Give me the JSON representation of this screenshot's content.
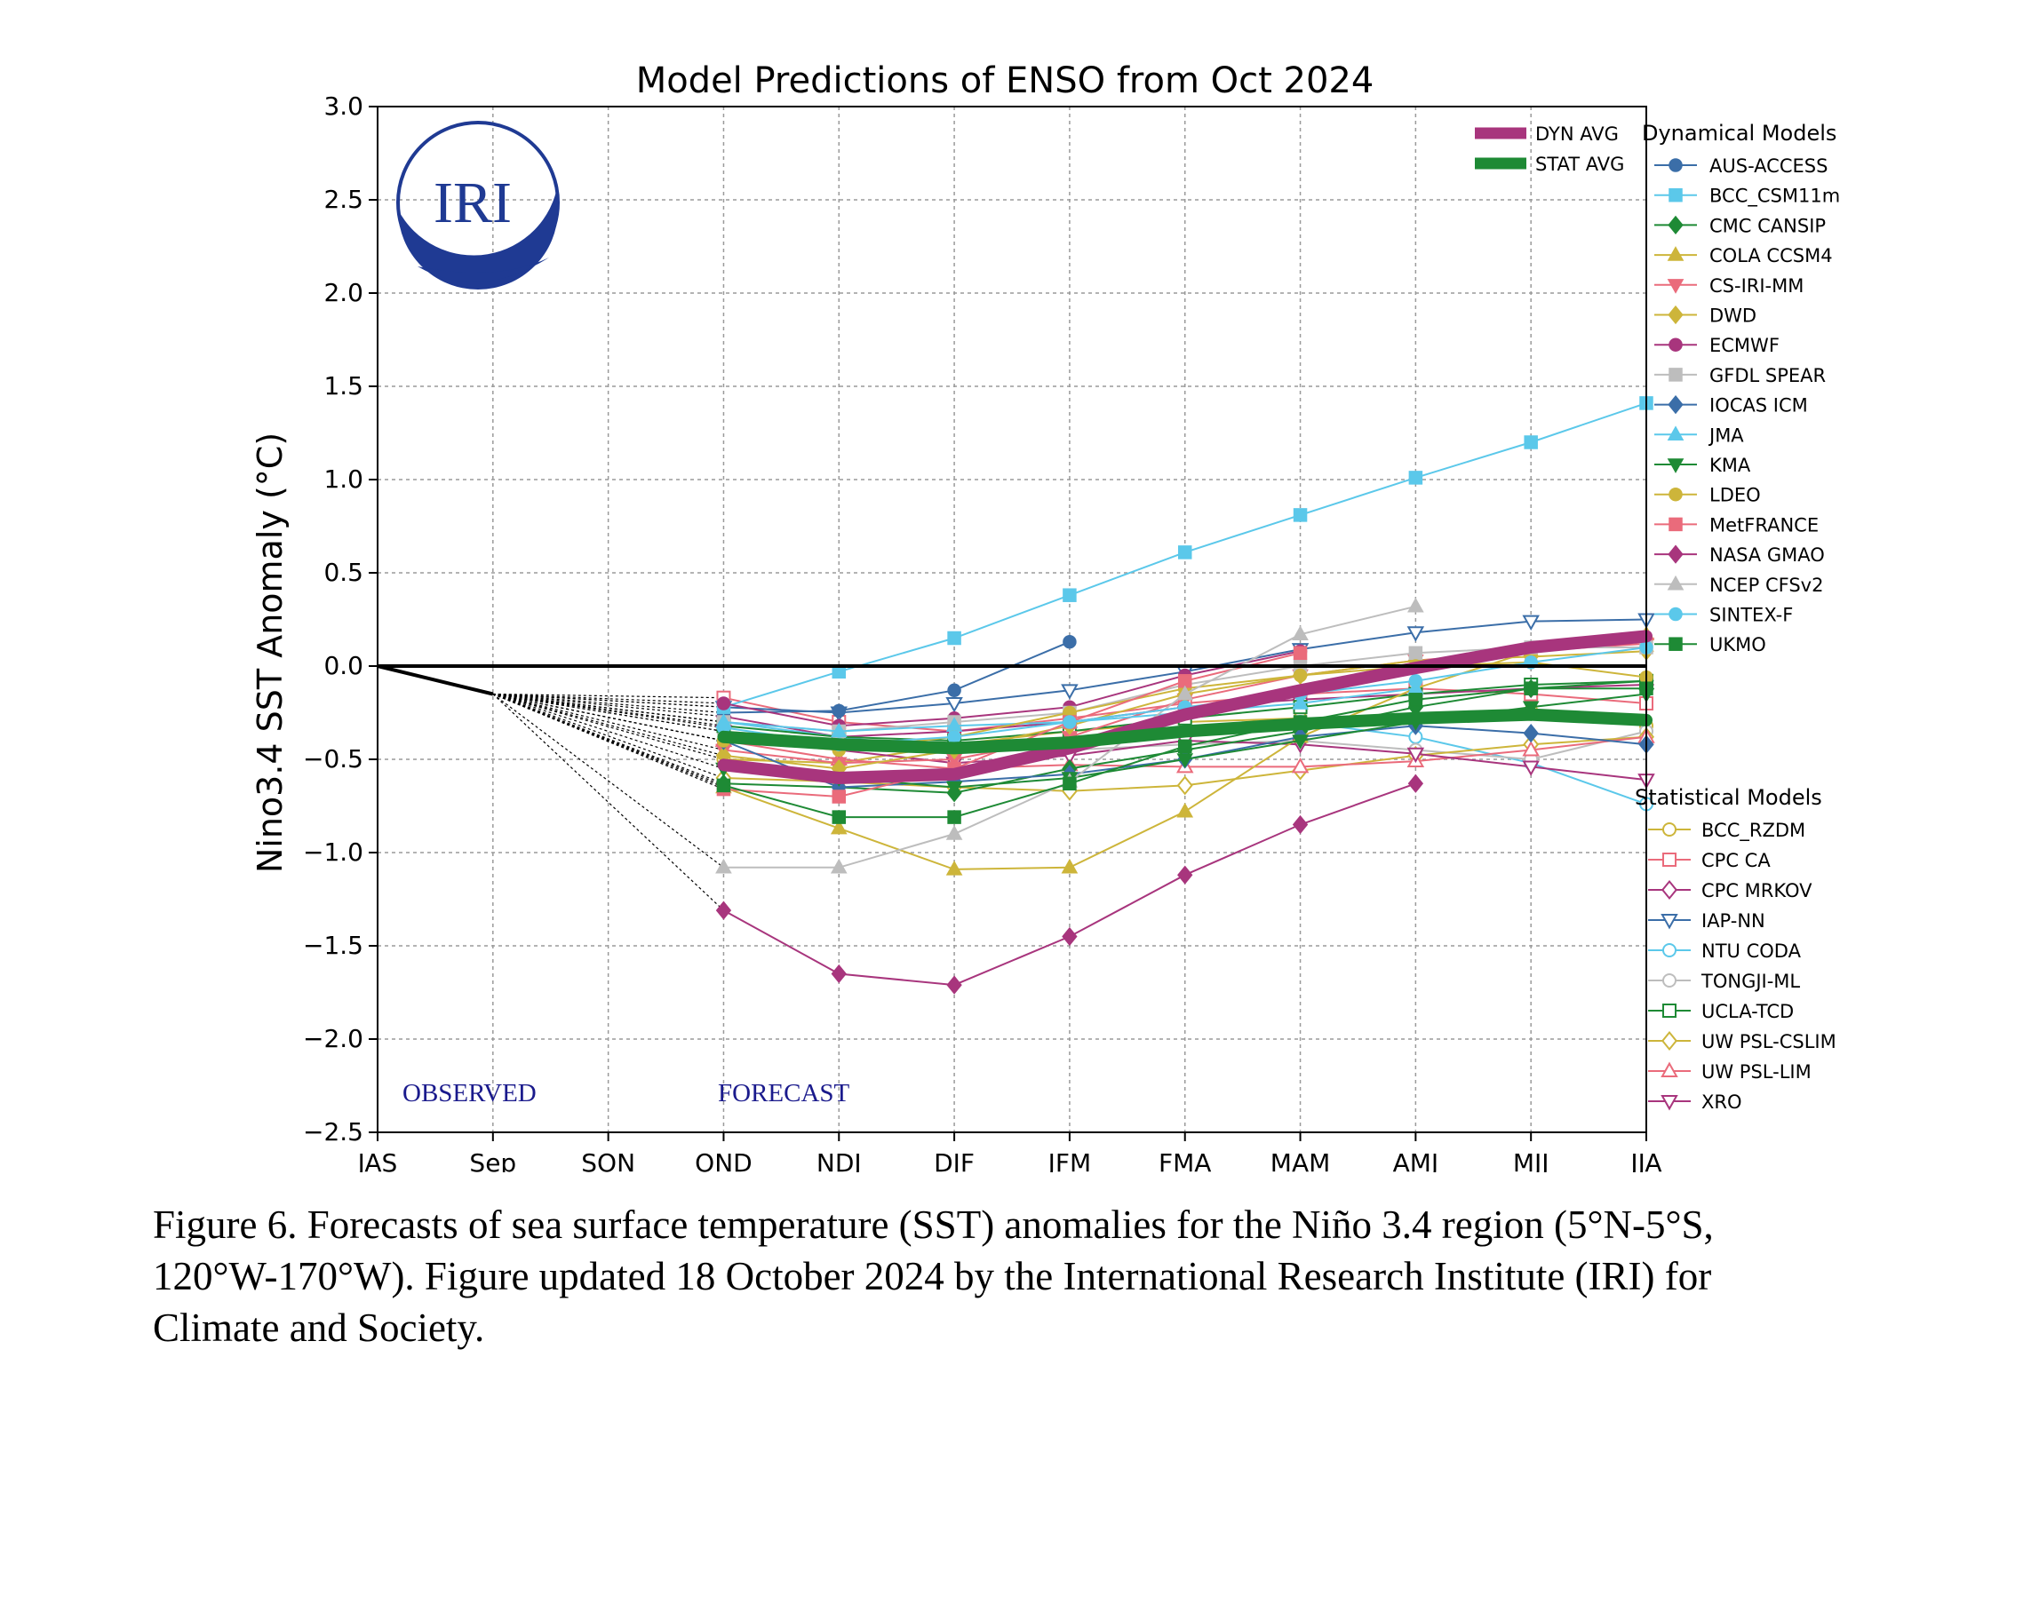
{
  "caption": "Figure 6. Forecasts of sea surface temperature (SST) anomalies for the Niño 3.4 region (5°N-5°S, 120°W-170°W). Figure updated 18 October 2024 by the International Research Institute (IRI) for Climate and Society.",
  "logo_text": "IRI",
  "colors": {
    "dyn_avg": "#a8357d",
    "stat_avg": "#1e8a35",
    "logo_blue": "#1f3a93",
    "forecast_text": "#1a1a8c"
  },
  "chart_data": {
    "type": "line",
    "title": "Model Predictions of ENSO from Oct 2024",
    "ylabel": "Nino3.4 SST Anomaly (°C)",
    "xlabel": "",
    "categories": [
      "JAS",
      "Sep",
      "SON",
      "OND",
      "NDJ",
      "DJF",
      "JFM",
      "FMA",
      "MAM",
      "AMJ",
      "MJJ",
      "JJA"
    ],
    "ylim": [
      -2.5,
      3.0
    ],
    "yticks": [
      -2.5,
      -2.0,
      -1.5,
      -1.0,
      -0.5,
      0.0,
      0.5,
      1.0,
      1.5,
      2.0,
      2.5,
      3.0
    ],
    "ytick_labels": [
      "−2.5",
      "−2.0",
      "−1.5",
      "−1.0",
      "−0.5",
      "0.0",
      "0.5",
      "1.0",
      "1.5",
      "2.0",
      "2.5",
      "3.0"
    ],
    "grid": true,
    "annotations": [
      "OBSERVED",
      "FORECAST"
    ],
    "observed": [
      0.0,
      -0.15
    ],
    "legend_dynamical_title": "Dynamical Models",
    "legend_statistical_title": "Statistical Models",
    "averages": [
      {
        "name": "DYN AVG",
        "color": "#a8357d",
        "values": [
          null,
          null,
          null,
          -0.53,
          -0.6,
          -0.58,
          -0.44,
          -0.26,
          -0.13,
          -0.01,
          0.1,
          0.16
        ]
      },
      {
        "name": "STAT AVG",
        "color": "#1e8a35",
        "values": [
          null,
          null,
          null,
          -0.38,
          -0.42,
          -0.44,
          -0.41,
          -0.35,
          -0.31,
          -0.28,
          -0.26,
          -0.29
        ]
      }
    ],
    "dynamical": [
      {
        "name": "AUS-ACCESS",
        "color": "#3b6ea8",
        "marker": "circle",
        "values": [
          null,
          null,
          null,
          -0.25,
          -0.24,
          -0.13,
          0.13,
          null,
          null,
          null,
          null,
          null
        ]
      },
      {
        "name": "BCC_CSM11m",
        "color": "#5bc8ea",
        "marker": "square",
        "values": [
          null,
          null,
          null,
          -0.22,
          -0.03,
          0.15,
          0.38,
          0.61,
          0.81,
          1.01,
          1.2,
          1.41
        ]
      },
      {
        "name": "CMC CANSIP",
        "color": "#1e8a35",
        "marker": "diamond",
        "values": [
          null,
          null,
          null,
          -0.63,
          -0.65,
          -0.68,
          -0.55,
          -0.45,
          -0.35,
          -0.22,
          -0.12,
          -0.08
        ]
      },
      {
        "name": "COLA CCSM4",
        "color": "#cdb53a",
        "marker": "triangle-up",
        "values": [
          null,
          null,
          null,
          -0.65,
          -0.87,
          -1.09,
          -1.08,
          -0.78,
          -0.38,
          -0.12,
          0.08,
          0.17
        ]
      },
      {
        "name": "CS-IRI-MM",
        "color": "#ea6b7b",
        "marker": "triangle-down",
        "values": [
          null,
          null,
          null,
          -0.45,
          -0.52,
          -0.5,
          -0.38,
          -0.18,
          -0.05,
          0.03,
          0.08,
          0.12
        ]
      },
      {
        "name": "DWD",
        "color": "#cdb53a",
        "marker": "diamond",
        "values": [
          null,
          null,
          null,
          -0.48,
          -0.55,
          -0.45,
          -0.32,
          -0.15,
          -0.05,
          0.03,
          0.05,
          0.08
        ]
      },
      {
        "name": "ECMWF",
        "color": "#a8357d",
        "marker": "circle",
        "values": [
          null,
          null,
          null,
          -0.2,
          -0.32,
          -0.28,
          -0.22,
          -0.05,
          0.08,
          null,
          null,
          null
        ]
      },
      {
        "name": "GFDL SPEAR",
        "color": "#bdbdbd",
        "marker": "square",
        "values": [
          null,
          null,
          null,
          -0.3,
          -0.35,
          -0.3,
          -0.25,
          -0.1,
          0.0,
          0.07,
          0.1,
          0.1
        ]
      },
      {
        "name": "IOCAS ICM",
        "color": "#3b6ea8",
        "marker": "diamond",
        "values": [
          null,
          null,
          null,
          -0.4,
          -0.65,
          -0.62,
          -0.58,
          -0.5,
          -0.38,
          -0.32,
          -0.36,
          -0.42
        ]
      },
      {
        "name": "JMA",
        "color": "#5bc8ea",
        "marker": "triangle-up",
        "values": [
          null,
          null,
          null,
          -0.3,
          -0.35,
          -0.32,
          -0.3,
          -0.25,
          -0.2,
          -0.12,
          null,
          null
        ]
      },
      {
        "name": "KMA",
        "color": "#1e8a35",
        "marker": "triangle-down",
        "values": [
          null,
          null,
          null,
          -0.55,
          -0.6,
          -0.65,
          -0.6,
          -0.5,
          -0.4,
          -0.3,
          -0.22,
          -0.15
        ]
      },
      {
        "name": "LDEO",
        "color": "#cdb53a",
        "marker": "circle",
        "values": [
          null,
          null,
          null,
          -0.4,
          -0.45,
          -0.38,
          -0.25,
          -0.12,
          -0.05,
          0.0,
          0.02,
          -0.06
        ]
      },
      {
        "name": "MetFRANCE",
        "color": "#ea6b7b",
        "marker": "square",
        "values": [
          null,
          null,
          null,
          -0.66,
          -0.7,
          -0.55,
          -0.3,
          -0.08,
          0.07,
          null,
          null,
          null
        ]
      },
      {
        "name": "NASA GMAO",
        "color": "#a8357d",
        "marker": "diamond",
        "values": [
          null,
          null,
          null,
          -1.31,
          -1.65,
          -1.71,
          -1.45,
          -1.12,
          -0.85,
          -0.63,
          null,
          null
        ]
      },
      {
        "name": "NCEP CFSv2",
        "color": "#bdbdbd",
        "marker": "triangle-up",
        "values": [
          null,
          null,
          null,
          -1.08,
          -1.08,
          -0.9,
          -0.62,
          -0.15,
          0.17,
          0.32,
          null,
          null
        ]
      },
      {
        "name": "SINTEX-F",
        "color": "#5bc8ea",
        "marker": "circle",
        "values": [
          null,
          null,
          null,
          -0.33,
          -0.42,
          -0.38,
          -0.3,
          -0.22,
          -0.15,
          -0.08,
          0.02,
          0.1
        ]
      },
      {
        "name": "UKMO",
        "color": "#1e8a35",
        "marker": "square",
        "values": [
          null,
          null,
          null,
          -0.64,
          -0.81,
          -0.81,
          -0.63,
          -0.43,
          -0.3,
          -0.18,
          -0.12,
          -0.12
        ]
      }
    ],
    "statistical": [
      {
        "name": "BCC_RZDM",
        "color": "#cdb53a",
        "marker": "circle-open",
        "values": [
          null,
          null,
          null,
          -0.5,
          -0.52,
          -0.42,
          -0.35,
          -0.3,
          -0.28,
          -0.28,
          -0.24,
          -0.32
        ]
      },
      {
        "name": "CPC CA",
        "color": "#ea6b7b",
        "marker": "square-open",
        "values": [
          null,
          null,
          null,
          -0.17,
          -0.3,
          -0.35,
          -0.28,
          -0.2,
          -0.15,
          -0.12,
          -0.15,
          -0.2
        ]
      },
      {
        "name": "CPC MRKOV",
        "color": "#a8357d",
        "marker": "diamond-open",
        "values": [
          null,
          null,
          null,
          -0.27,
          -0.38,
          -0.35,
          -0.3,
          -0.22,
          -0.18,
          -0.15,
          -0.12,
          -0.1
        ]
      },
      {
        "name": "IAP-NN",
        "color": "#3b6ea8",
        "marker": "triangle-down-open",
        "values": [
          null,
          null,
          null,
          -0.22,
          -0.25,
          -0.2,
          -0.13,
          -0.03,
          0.09,
          0.18,
          0.24,
          0.25
        ]
      },
      {
        "name": "NTU CODA",
        "color": "#5bc8ea",
        "marker": "circle-open",
        "values": [
          null,
          null,
          null,
          -0.3,
          -0.38,
          -0.45,
          -0.42,
          -0.35,
          -0.3,
          -0.38,
          -0.52,
          -0.74
        ]
      },
      {
        "name": "TONGJI-ML",
        "color": "#bdbdbd",
        "marker": "circle-open",
        "values": [
          null,
          null,
          null,
          -0.35,
          -0.4,
          -0.42,
          -0.45,
          -0.42,
          -0.4,
          -0.45,
          -0.5,
          -0.35
        ]
      },
      {
        "name": "UCLA-TCD",
        "color": "#1e8a35",
        "marker": "square-open",
        "values": [
          null,
          null,
          null,
          -0.32,
          -0.38,
          -0.4,
          -0.35,
          -0.28,
          -0.22,
          -0.15,
          -0.1,
          -0.08
        ]
      },
      {
        "name": "UW PSL-CSLIM",
        "color": "#cdb53a",
        "marker": "diamond-open",
        "values": [
          null,
          null,
          null,
          -0.6,
          -0.62,
          -0.65,
          -0.67,
          -0.64,
          -0.56,
          -0.48,
          -0.42,
          -0.38
        ]
      },
      {
        "name": "UW PSL-LIM",
        "color": "#ea6b7b",
        "marker": "triangle-up-open",
        "values": [
          null,
          null,
          null,
          -0.4,
          -0.5,
          -0.55,
          -0.53,
          -0.54,
          -0.54,
          -0.51,
          -0.45,
          -0.38
        ]
      },
      {
        "name": "XRO",
        "color": "#a8357d",
        "marker": "triangle-down-open",
        "values": [
          null,
          null,
          null,
          -0.35,
          -0.45,
          -0.52,
          -0.48,
          -0.4,
          -0.42,
          -0.47,
          -0.54,
          -0.61
        ]
      }
    ]
  }
}
